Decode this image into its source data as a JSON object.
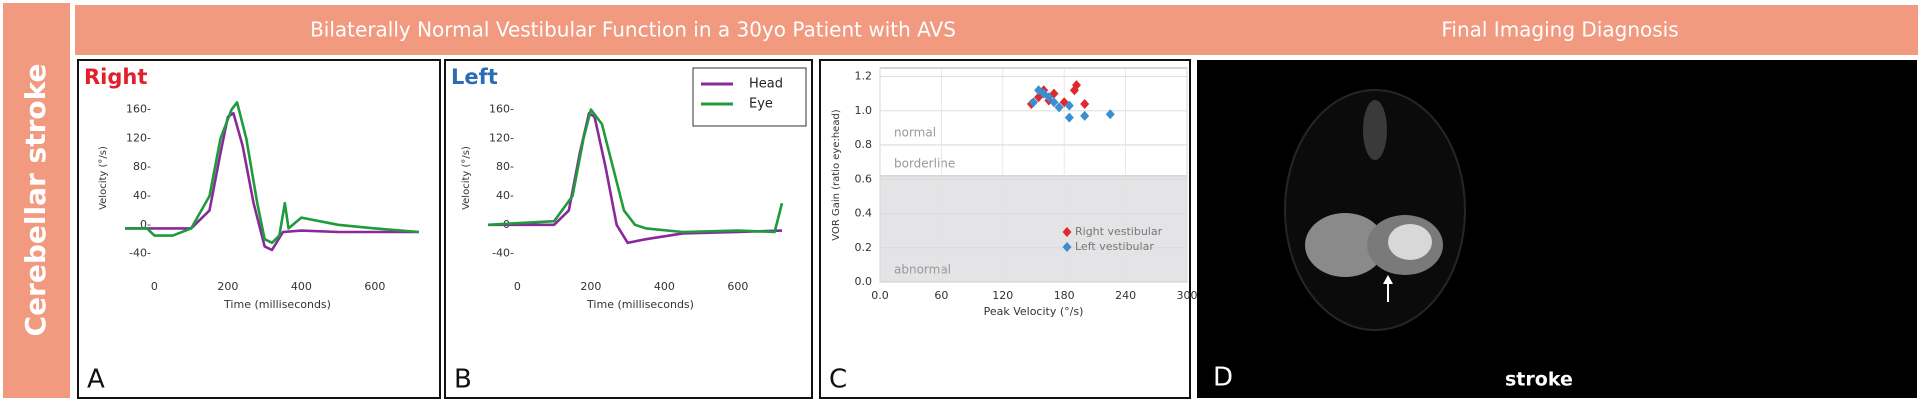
{
  "side_label": "Cerebellar stroke",
  "header": {
    "main": "Bilaterally Normal Vestibular Function in a 30yo Patient with AVS",
    "right": "Final Imaging Diagnosis"
  },
  "image_panel": {
    "panel_label": "D",
    "caption": "stroke"
  },
  "chart_data": [
    {
      "type": "line",
      "title": "Right",
      "title_color": "#e0202a",
      "panel_label": "A",
      "xlabel": "Time (milliseconds)",
      "ylabel": "Velocity (°/s)",
      "xlim": [
        -80,
        750
      ],
      "ylim": [
        -60,
        190
      ],
      "xticks": [
        0,
        200,
        400,
        600
      ],
      "yticks": [
        {
          "value": 160,
          "label": "160-"
        },
        {
          "value": 120,
          "label": "120-"
        },
        {
          "value": 80,
          "label": "80-"
        },
        {
          "value": 40,
          "label": "40-"
        },
        {
          "value": 0,
          "label": "0-"
        },
        {
          "value": -40,
          "label": "-40-"
        }
      ],
      "series": [
        {
          "color": "#8a2a9a",
          "x": [
            -80,
            0,
            100,
            150,
            180,
            200,
            215,
            240,
            270,
            300,
            320,
            350,
            400,
            500,
            600,
            720
          ],
          "values": [
            -5,
            -5,
            -5,
            20,
            100,
            150,
            155,
            110,
            30,
            -30,
            -35,
            -10,
            -8,
            -10,
            -10,
            -10
          ]
        },
        {
          "color": "#1f9a3c",
          "x": [
            -80,
            -20,
            0,
            50,
            100,
            150,
            180,
            210,
            225,
            250,
            280,
            300,
            320,
            340,
            355,
            365,
            400,
            500,
            600,
            720
          ],
          "values": [
            -5,
            -5,
            -15,
            -15,
            -5,
            40,
            120,
            160,
            170,
            120,
            30,
            -20,
            -25,
            -15,
            30,
            -5,
            10,
            0,
            -5,
            -10
          ]
        }
      ]
    },
    {
      "type": "line",
      "title": "Left",
      "title_color": "#2a6db5",
      "panel_label": "B",
      "legend": "upper right",
      "xlabel": "Time (milliseconds)",
      "ylabel": "Velocity (°/s)",
      "xlim": [
        -80,
        750
      ],
      "ylim": [
        -60,
        190
      ],
      "xticks": [
        0,
        200,
        400,
        600
      ],
      "yticks": [
        {
          "value": 160,
          "label": "160-"
        },
        {
          "value": 120,
          "label": "120-"
        },
        {
          "value": 80,
          "label": "80-"
        },
        {
          "value": 40,
          "label": "40-"
        },
        {
          "value": 0,
          "label": "0-"
        },
        {
          "value": -40,
          "label": "-40-"
        }
      ],
      "series": [
        {
          "name": "Head",
          "color": "#8a2a9a",
          "x": [
            -80,
            100,
            140,
            170,
            195,
            210,
            240,
            270,
            300,
            350,
            450,
            600,
            720
          ],
          "values": [
            0,
            0,
            20,
            100,
            155,
            150,
            80,
            0,
            -25,
            -20,
            -12,
            -10,
            -8
          ]
        },
        {
          "name": "Eye",
          "color": "#1f9a3c",
          "x": [
            -80,
            100,
            150,
            180,
            200,
            230,
            260,
            290,
            320,
            350,
            450,
            600,
            700,
            720
          ],
          "values": [
            0,
            5,
            40,
            120,
            160,
            140,
            80,
            20,
            0,
            -5,
            -10,
            -8,
            -10,
            30
          ]
        }
      ]
    },
    {
      "type": "scatter",
      "panel_label": "C",
      "legend": "lower right",
      "grid": true,
      "xlabel": "Peak Velocity (°/s)",
      "ylabel": "VOR Gain (ratio eye:head)",
      "xlim": [
        0,
        300
      ],
      "ylim": [
        0,
        1.25
      ],
      "xticks": [
        {
          "value": 0,
          "label": "0.0"
        },
        60,
        120,
        180,
        240,
        300
      ],
      "yticks": [
        {
          "value": 0,
          "label": "0.0"
        },
        0.2,
        0.4,
        0.6,
        0.8,
        {
          "value": 1,
          "label": "1.0"
        },
        1.2
      ],
      "bands": [
        {
          "label": "normal",
          "from": 0.8,
          "to": 1.25,
          "color": "#ffffff"
        },
        {
          "label": "borderline",
          "from": 0.62,
          "to": 0.8,
          "color": "#ffffff"
        },
        {
          "label": "abnormal",
          "from": 0,
          "to": 0.62,
          "color": "#e4e4e6"
        }
      ],
      "series": [
        {
          "name": "Right vestibular",
          "color": "#e0282e",
          "x": [
            148,
            155,
            160,
            165,
            170,
            180,
            190,
            192,
            200
          ],
          "values": [
            1.04,
            1.08,
            1.12,
            1.06,
            1.1,
            1.05,
            1.12,
            1.15,
            1.04
          ]
        },
        {
          "name": "Left vestibular",
          "color": "#3a8fd0",
          "x": [
            150,
            155,
            160,
            165,
            170,
            175,
            185,
            185,
            200,
            225
          ],
          "values": [
            1.05,
            1.12,
            1.1,
            1.08,
            1.05,
            1.02,
            1.03,
            0.96,
            0.97,
            0.98
          ]
        }
      ]
    }
  ]
}
